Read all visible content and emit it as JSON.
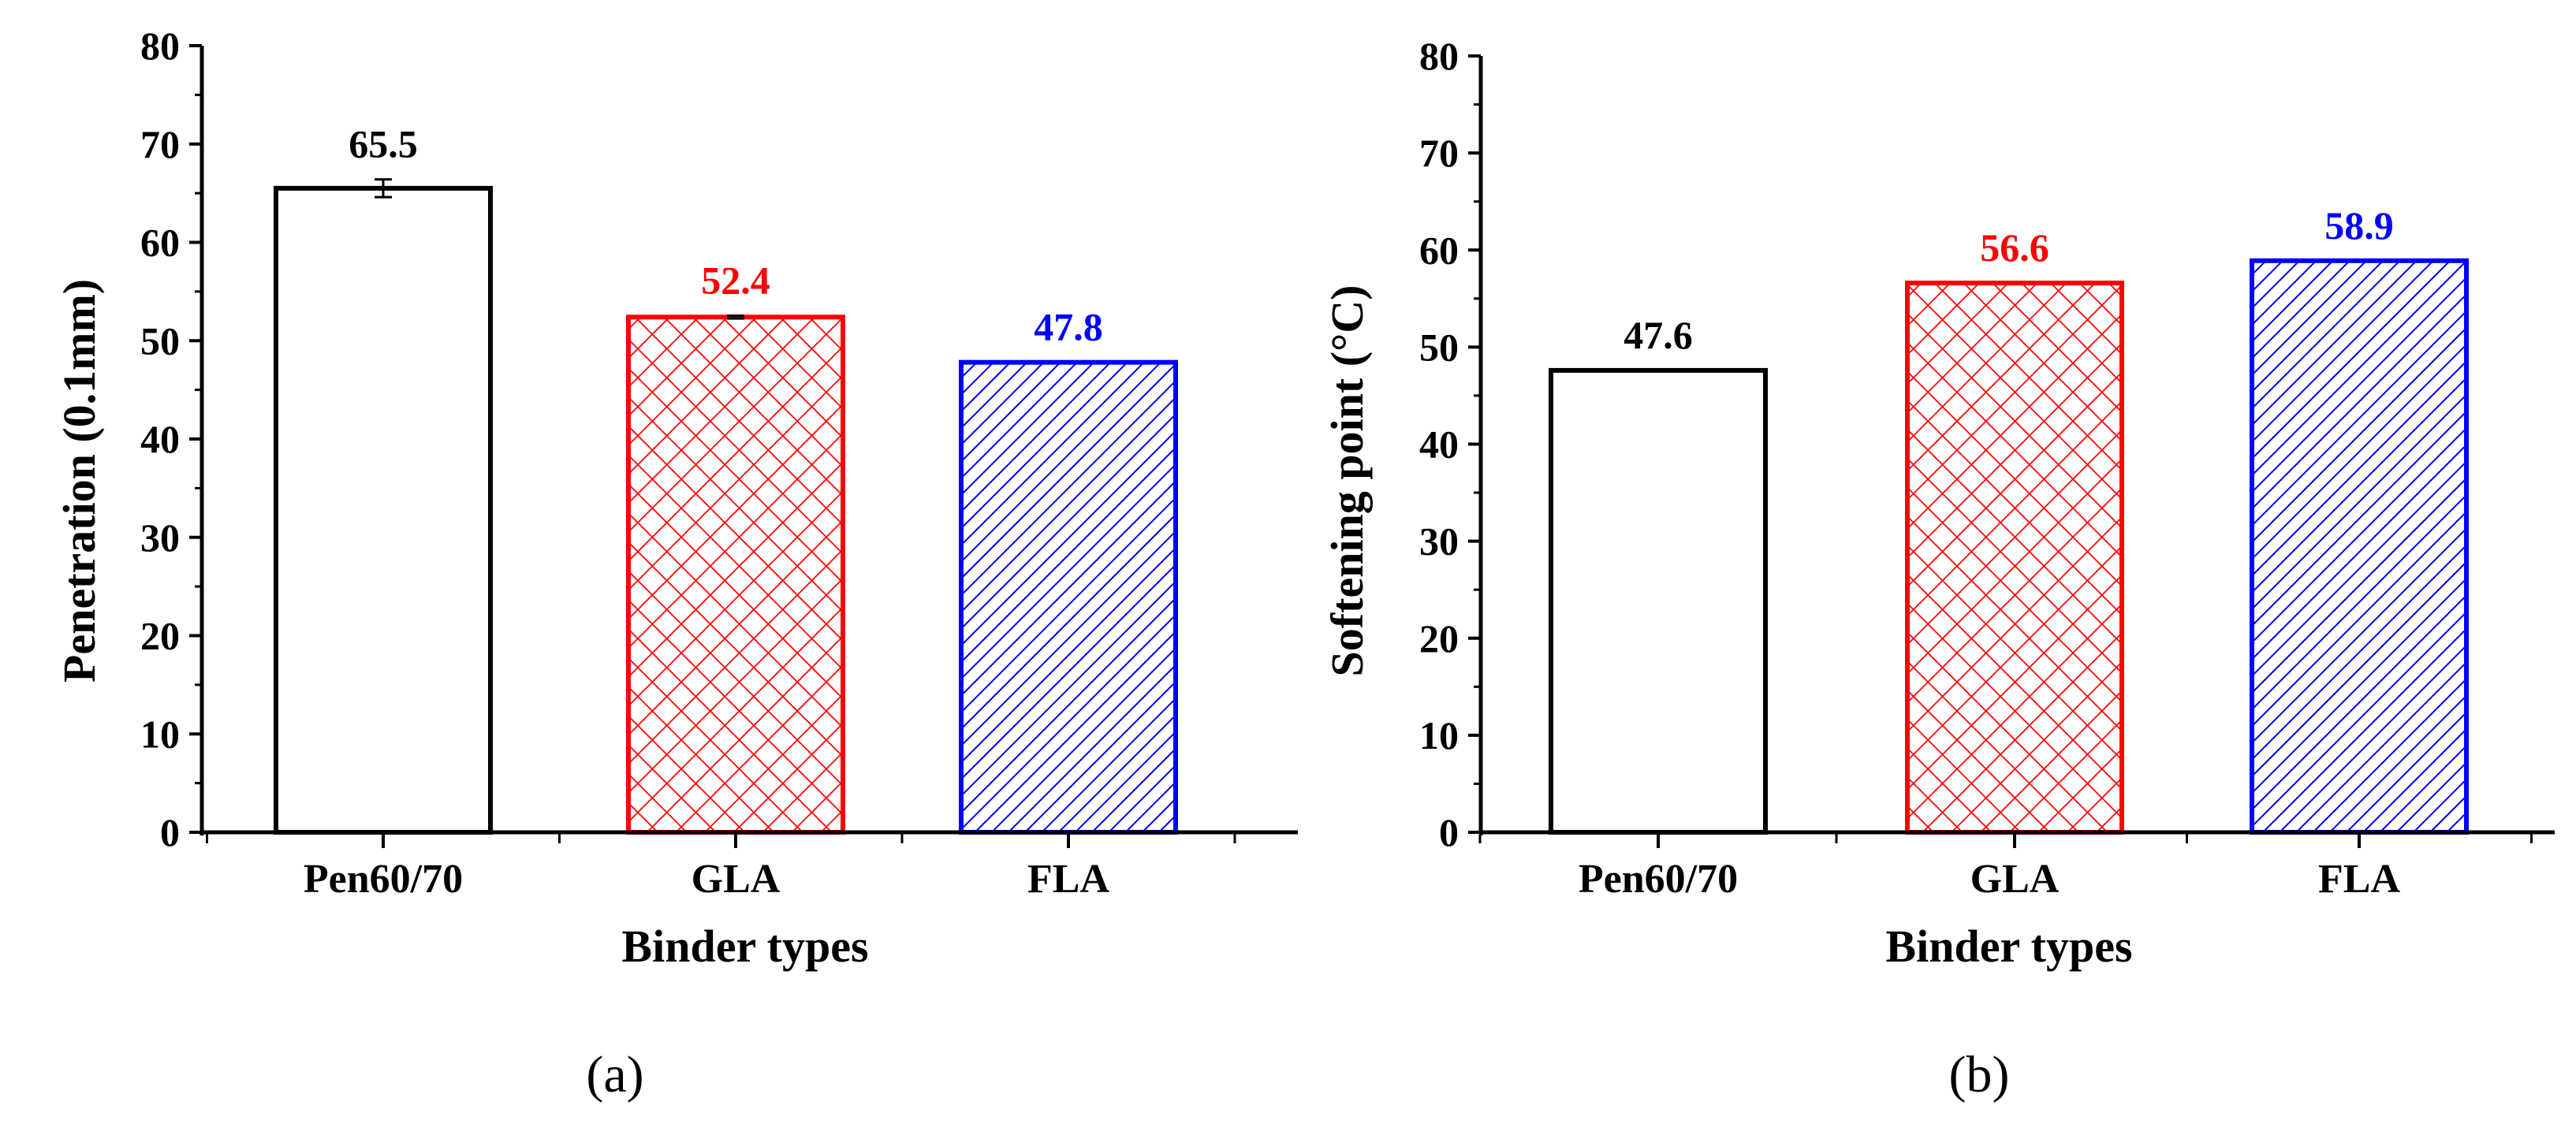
{
  "chart_data": [
    {
      "type": "bar",
      "panel_label": "(a)",
      "title": "",
      "xlabel": "Binder types",
      "ylabel": "Penetration (0.1mm)",
      "categories": [
        "Pen60/70",
        "GLA",
        "FLA"
      ],
      "values": [
        65.5,
        52.4,
        47.8
      ],
      "value_labels": [
        "65.5",
        "52.4",
        "47.8"
      ],
      "error": [
        0.9,
        0.15,
        0
      ],
      "ylim": [
        0,
        80
      ],
      "yticks": [
        0,
        10,
        20,
        30,
        40,
        50,
        60,
        70,
        80
      ],
      "ytick_labels": [
        "0",
        "10",
        "20",
        "30",
        "40",
        "50",
        "60",
        "70",
        "80"
      ],
      "bar_colors": [
        "#000000",
        "#ff0000",
        "#0000ff"
      ],
      "bar_patterns": [
        "none",
        "crosshatch",
        "diagonal"
      ],
      "grid": false,
      "legend": "none"
    },
    {
      "type": "bar",
      "panel_label": "(b)",
      "title": "",
      "xlabel": "Binder types",
      "ylabel": "Softening point (°C)",
      "categories": [
        "Pen60/70",
        "GLA",
        "FLA"
      ],
      "values": [
        47.6,
        56.6,
        58.9
      ],
      "value_labels": [
        "47.6",
        "56.6",
        "58.9"
      ],
      "error": [
        0,
        0,
        0
      ],
      "ylim": [
        0,
        80
      ],
      "yticks": [
        0,
        10,
        20,
        30,
        40,
        50,
        60,
        70,
        80
      ],
      "ytick_labels": [
        "0",
        "10",
        "20",
        "30",
        "40",
        "50",
        "60",
        "70",
        "80"
      ],
      "bar_colors": [
        "#000000",
        "#ff0000",
        "#0000ff"
      ],
      "bar_patterns": [
        "none",
        "crosshatch",
        "diagonal"
      ],
      "grid": false,
      "legend": "none"
    }
  ]
}
